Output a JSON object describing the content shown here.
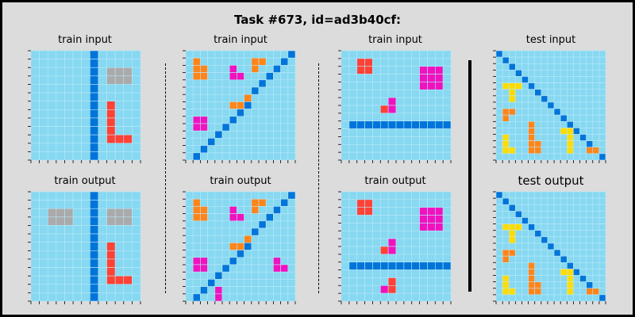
{
  "page_title": "Task #673, id=ad3b40cf:",
  "colors": {
    "0": "#87D8F1",
    "1": "#0074D9",
    "2": "#FF4136",
    "3": "#2ECC40",
    "4": "#FFDC00",
    "5": "#AAAAAA",
    "6": "#F012BE",
    "7": "#FF851B",
    "8": "#7FDBFF",
    "9": "#870C25",
    "gridline": "#b8e8fa",
    "background": "#dcdcdc"
  },
  "panels": [
    {
      "label": "train input",
      "grid": [
        "0000000100000",
        "0000000100000",
        "0000000105550",
        "0000000105550",
        "0000000100000",
        "0000000100000",
        "0000000102000",
        "0000000102000",
        "0000000102000",
        "0000000102000",
        "0000000102220",
        "0000000100000",
        "0000000100000"
      ]
    },
    {
      "label": "train output",
      "grid": [
        "0000000100000",
        "0000000100000",
        "0055500105550",
        "0055500105550",
        "0000000100000",
        "0000000100000",
        "0000000102000",
        "0000000102000",
        "0000000102000",
        "0000000102000",
        "0000000102220",
        "0000000100000",
        "0000000100000"
      ]
    },
    {
      "label": "train input",
      "grid": [
        "000000000000001",
        "070000000770010",
        "077000600700100",
        "077000660001000",
        "000000000010000",
        "000000000100000",
        "000000007000000",
        "000000771000000",
        "000000010000000",
        "066000100000000",
        "066001000000000",
        "000010000000000",
        "000100000000000",
        "001000000000000",
        "010000000000000"
      ]
    },
    {
      "label": "train output",
      "grid": [
        "000000000000001",
        "070000000770010",
        "077000600700100",
        "077000660001000",
        "000000000010000",
        "000000000100000",
        "000000007000000",
        "000000771000000",
        "000000010000000",
        "066000100000600",
        "066001000000660",
        "000010000000000",
        "000100000000000",
        "001060000000000",
        "010060000000000"
      ]
    },
    {
      "label": "train input",
      "grid": [
        "00000000000000",
        "00220000000000",
        "00220000006660",
        "00000000006660",
        "00000000006660",
        "00000000000000",
        "00000060000000",
        "00000260000000",
        "00000000000000",
        "01111111111111",
        "00000000000000",
        "00000000000000",
        "00000000000000",
        "00000000000000"
      ]
    },
    {
      "label": "train output",
      "grid": [
        "00000000000000",
        "00220000000000",
        "00220000006660",
        "00000000006660",
        "00000000006660",
        "00000000000000",
        "00000060000000",
        "00000260000000",
        "00000000000000",
        "01111111111111",
        "00000000000000",
        "00000020000000",
        "00000620000000",
        "00000000000000"
      ]
    },
    {
      "label": "test input",
      "grid": [
        "10000000000000000",
        "01000000000000000",
        "00100000000000000",
        "00010000000000000",
        "00001000000000000",
        "04440100000000000",
        "00400010000000000",
        "00400001000000000",
        "00000000100000000",
        "07700000010000000",
        "07000000001000000",
        "00000700000100000",
        "00000700004410000",
        "04000700000401000",
        "04000770000400100",
        "04400770000400770",
        "00000000000000001"
      ]
    },
    {
      "label": "test output",
      "big": true,
      "grid": [
        "10000000000000000",
        "01000000000000000",
        "00100000000000000",
        "00010000000000000",
        "00001000000000000",
        "04440100000000000",
        "00400010000000000",
        "00400001000000000",
        "00000000100000000",
        "07700000010000000",
        "07000000001000000",
        "00000700000100000",
        "00000700004410000",
        "04000700000401000",
        "04000770000400100",
        "04400770000400770",
        "00000000000000001"
      ]
    }
  ]
}
